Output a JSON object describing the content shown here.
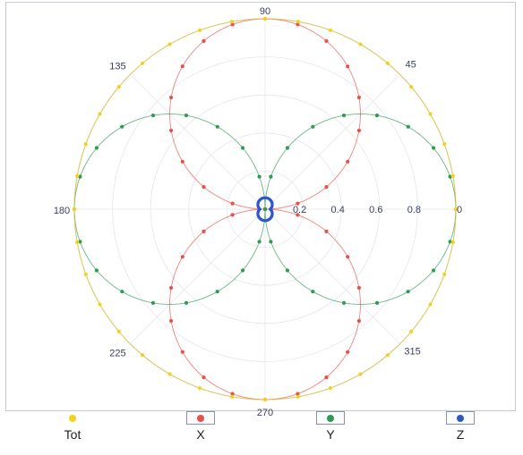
{
  "chart_data": {
    "type": "polar-scatter",
    "title": "",
    "angle_unit": "degrees",
    "angle_ticks": [
      0,
      45,
      90,
      135,
      180,
      225,
      270,
      315
    ],
    "angle_tick_labels": [
      "0",
      "45",
      "90",
      "135",
      "180",
      "225",
      "270",
      "315"
    ],
    "radial_range": [
      0,
      1
    ],
    "radial_ticks": [
      0.2,
      0.4,
      0.6,
      0.8
    ],
    "radial_tick_labels": [
      "0.2",
      "0.4",
      "0.6",
      "0.8"
    ],
    "grid": true,
    "legend_position": "bottom",
    "series": [
      {
        "name": "Tot",
        "color": "#f2d21b",
        "shape": "circle",
        "r_max": 1.0,
        "angle_step": 10
      },
      {
        "name": "X",
        "color": "#e8504a",
        "shape": "sin-lobes",
        "r_max": 1.0,
        "angle_step": 10
      },
      {
        "name": "Y",
        "color": "#2f9a52",
        "shape": "cos-lobes",
        "r_max": 1.0,
        "angle_step": 10
      },
      {
        "name": "Z",
        "color": "#2f57c8",
        "shape": "small-lobes",
        "r_max": 0.06,
        "angle_step": 5
      }
    ]
  }
}
